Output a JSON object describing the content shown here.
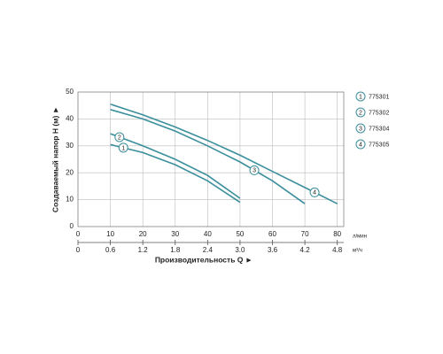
{
  "chart_data": {
    "type": "line",
    "x_label": "Производительность Q ►",
    "y_label": "Создаваемый напор H (м) ►",
    "x_unit": "л/мин",
    "x2_unit": "м³/ч",
    "x": [
      10,
      20,
      30,
      40,
      50,
      60,
      70,
      80
    ],
    "series": [
      {
        "name": "775301",
        "label": "1",
        "color": "#3b8f9c",
        "values": [
          30.5,
          27.5,
          23,
          17,
          9,
          null,
          null,
          null
        ]
      },
      {
        "name": "775302",
        "label": "2",
        "color": "#3b8f9c",
        "values": [
          34.5,
          30,
          25,
          19,
          10.5,
          null,
          null,
          null
        ]
      },
      {
        "name": "775304",
        "label": "3",
        "color": "#3b8f9c",
        "values": [
          43.5,
          40,
          35.5,
          30,
          24,
          17,
          8.5,
          null
        ]
      },
      {
        "name": "775305",
        "label": "4",
        "color": "#3b8f9c",
        "values": [
          45.5,
          41.5,
          37,
          32,
          26.5,
          20.5,
          14.5,
          8.5
        ]
      }
    ],
    "xlim": [
      0,
      82
    ],
    "xticks": [
      0,
      10,
      20,
      30,
      40,
      50,
      60,
      70,
      80
    ],
    "x2lim": [
      0,
      4.92
    ],
    "x2ticks": [
      0,
      0.6,
      1.2,
      1.8,
      2.4,
      {
        "value": 3,
        "label": "3.0"
      },
      3.6,
      4.2,
      4.8
    ],
    "ylim": [
      0,
      50
    ],
    "yticks": [
      0,
      10,
      20,
      30,
      40,
      50
    ],
    "grid": true
  }
}
